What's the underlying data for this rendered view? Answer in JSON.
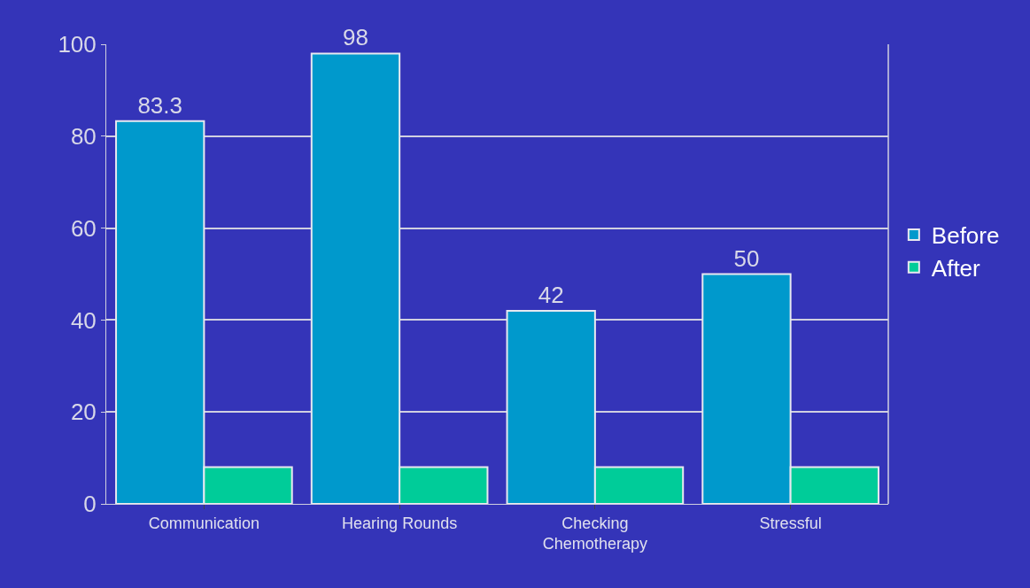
{
  "chart_data": {
    "type": "bar",
    "categories": [
      "Communication",
      "Hearing Rounds",
      "Checking\nChemotherapy",
      "Stressful"
    ],
    "series": [
      {
        "name": "Before",
        "color": "#0099cc",
        "values": [
          83.3,
          98,
          42,
          50
        ],
        "value_labels": [
          "83.3",
          "98",
          "42",
          "50"
        ]
      },
      {
        "name": "After",
        "color": "#00cc99",
        "values": [
          8,
          8,
          8,
          8
        ]
      }
    ],
    "ylim": [
      0,
      100
    ],
    "yticks": [
      0,
      20,
      40,
      60,
      80,
      100
    ],
    "grid": "y",
    "legend": "right"
  }
}
